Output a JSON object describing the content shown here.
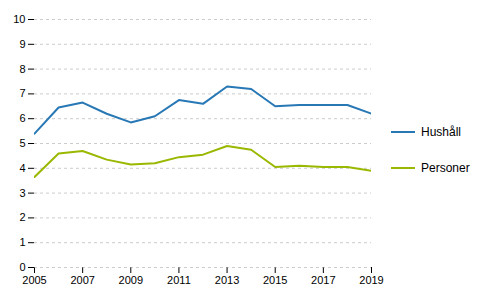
{
  "chart_data": {
    "type": "line",
    "x": [
      2005,
      2006,
      2007,
      2008,
      2009,
      2010,
      2011,
      2012,
      2013,
      2014,
      2015,
      2016,
      2017,
      2018,
      2019
    ],
    "series": [
      {
        "name": "Hushåll",
        "color": "#2878b5",
        "values": [
          5.4,
          6.45,
          6.65,
          6.2,
          5.85,
          6.1,
          6.75,
          6.6,
          7.3,
          7.2,
          6.5,
          6.55,
          6.55,
          6.55,
          6.2
        ]
      },
      {
        "name": "Personer",
        "color": "#99b800",
        "values": [
          3.65,
          4.6,
          4.7,
          4.35,
          4.15,
          4.2,
          4.45,
          4.55,
          4.9,
          4.75,
          4.05,
          4.1,
          4.05,
          4.05,
          3.9
        ]
      }
    ],
    "xlim": [
      2005,
      2019
    ],
    "xticks": [
      2005,
      2007,
      2009,
      2011,
      2013,
      2015,
      2017,
      2019
    ],
    "ylim": [
      0,
      10
    ],
    "yticks": [
      0,
      1,
      2,
      3,
      4,
      5,
      6,
      7,
      8,
      9,
      10
    ],
    "grid": true,
    "legend": "right"
  }
}
